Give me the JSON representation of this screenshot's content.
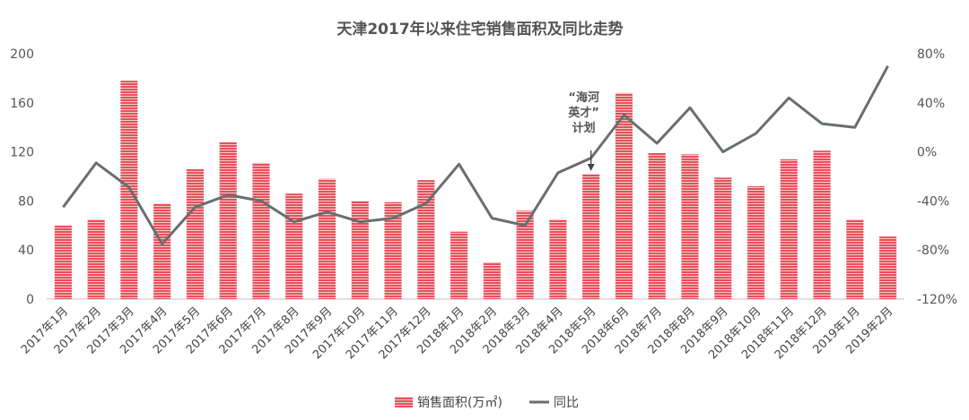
{
  "chart_data": {
    "type": "bar",
    "title": "天津2017年以来住宅销售面积及同比走势",
    "categories": [
      "2017年1月",
      "2017年2月",
      "2017年3月",
      "2017年4月",
      "2017年5月",
      "2017年6月",
      "2017年7月",
      "2017年8月",
      "2017年9月",
      "2017年10月",
      "2017年11月",
      "2017年12月",
      "2018年1月",
      "2018年2月",
      "2018年3月",
      "2018年4月",
      "2018年5月",
      "2018年6月",
      "2018年7月",
      "2018年8月",
      "2018年9月",
      "2018年10月",
      "2018年11月",
      "2018年12月",
      "2019年1月",
      "2019年2月"
    ],
    "series": [
      {
        "name": "销售面积(万㎡)",
        "type": "bar",
        "axis": "left",
        "color": "#e8505b",
        "values": [
          60,
          65,
          178,
          78,
          106,
          128,
          111,
          86,
          98,
          80,
          79,
          97,
          55,
          30,
          72,
          65,
          102,
          168,
          119,
          118,
          99,
          92,
          114,
          121,
          65,
          51
        ]
      },
      {
        "name": "同比",
        "type": "line",
        "axis": "right",
        "color": "#6a6e6f",
        "values": [
          -45,
          -9,
          -29,
          -75,
          -45,
          -35,
          -40,
          -57,
          -49,
          -57,
          -54,
          -42,
          -10,
          -54,
          -60,
          -17,
          -5,
          30,
          7,
          36,
          0,
          15,
          44,
          23,
          20,
          70
        ]
      }
    ],
    "y_left": {
      "min": 0,
      "max": 200,
      "ticks": [
        "0",
        "40",
        "80",
        "120",
        "160",
        "200"
      ]
    },
    "y_right": {
      "min": -120,
      "max": 80,
      "ticks": [
        "-120%",
        "-80%",
        "-40%",
        "0%",
        "40%",
        "80%"
      ]
    },
    "annotation": {
      "lines": [
        "“海河",
        "英才”",
        "计划"
      ],
      "target_category": "2018年5月"
    },
    "legend": {
      "position": "bottom",
      "items": [
        "销售面积(万㎡)",
        "同比"
      ]
    },
    "grid": false
  }
}
